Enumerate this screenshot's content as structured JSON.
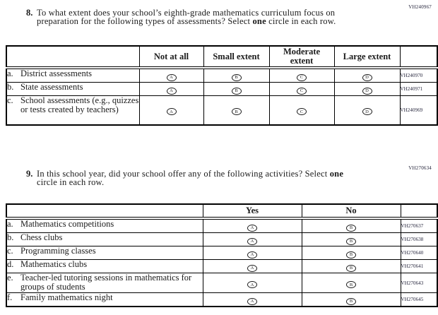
{
  "page_background": "#ffffff",
  "text_color": "#1b1b1b",
  "border_color": "#000000",
  "questions": [
    {
      "number": "8.",
      "code": "VH240967",
      "prompt": [
        {
          "text": "To what extent does your school’s eighth-grade mathematics curriculum focus on"
        },
        {
          "br": true
        },
        {
          "text": "preparation for the following types of assessments? Select "
        },
        {
          "text": "one",
          "bold": true
        },
        {
          "text": " circle in each row."
        }
      ],
      "table": {
        "columns": [
          "Not at all",
          "Small extent",
          "Moderate extent",
          "Large extent"
        ],
        "option_letters": [
          "A",
          "B",
          "C",
          "D"
        ],
        "rows": [
          {
            "letter": "a.",
            "label": "District assessments",
            "code": "VH240970"
          },
          {
            "letter": "b.",
            "label": "State assessments",
            "code": "VH240971"
          },
          {
            "letter": "c.",
            "label": "School assessments (e.g., quizzes or tests created by teachers)",
            "code": "VH240969"
          }
        ]
      }
    },
    {
      "number": "9.",
      "code": "VH270634",
      "prompt": [
        {
          "text": "In this school year, did your school offer any of the following activities? Select "
        },
        {
          "text": "one",
          "bold": true
        },
        {
          "br": true
        },
        {
          "text": "circle in each row."
        }
      ],
      "table": {
        "columns": [
          "Yes",
          "No"
        ],
        "option_letters": [
          "A",
          "B"
        ],
        "rows": [
          {
            "letter": "a.",
            "label": "Mathematics competitions",
            "code": "VH270637"
          },
          {
            "letter": "b.",
            "label": "Chess clubs",
            "code": "VH270638"
          },
          {
            "letter": "c.",
            "label": "Programming classes",
            "code": "VH270640"
          },
          {
            "letter": "d.",
            "label": "Mathematics clubs",
            "code": "VH270641"
          },
          {
            "letter": "e.",
            "label": "Teacher-led tutoring sessions in mathematics for groups of students",
            "code": "VH270643"
          },
          {
            "letter": "f.",
            "label": "Family mathematics night",
            "code": "VH270645"
          }
        ]
      }
    }
  ]
}
